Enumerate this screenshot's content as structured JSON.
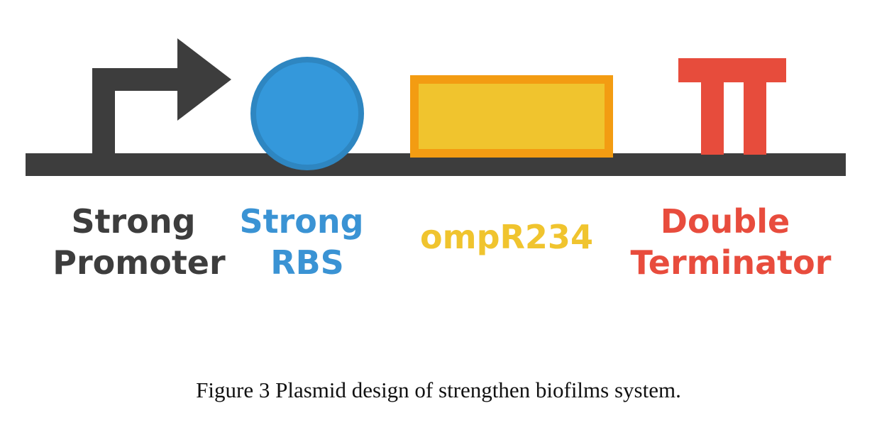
{
  "parts": [
    {
      "key": "promoter",
      "lines": [
        "Strong",
        "Promoter"
      ],
      "color": "#3d3d3d"
    },
    {
      "key": "rbs",
      "lines": [
        "Strong",
        "RBS"
      ],
      "color": "#3a93d4"
    },
    {
      "key": "cds",
      "lines": [
        "ompR234"
      ],
      "color": "#f0c42e"
    },
    {
      "key": "terminator",
      "lines": [
        "Double",
        "Terminator"
      ],
      "color": "#e84c3d"
    }
  ],
  "colors": {
    "backbone": "#3d3d3d",
    "promoter": "#3d3d3d",
    "rbs_fill": "#3498db",
    "rbs_stroke": "#2e86c1",
    "cds_fill": "#f0c42e",
    "cds_stroke": "#f39c12",
    "terminator": "#e74c3c"
  },
  "caption": "Figure 3 Plasmid design of strengthen biofilms system."
}
